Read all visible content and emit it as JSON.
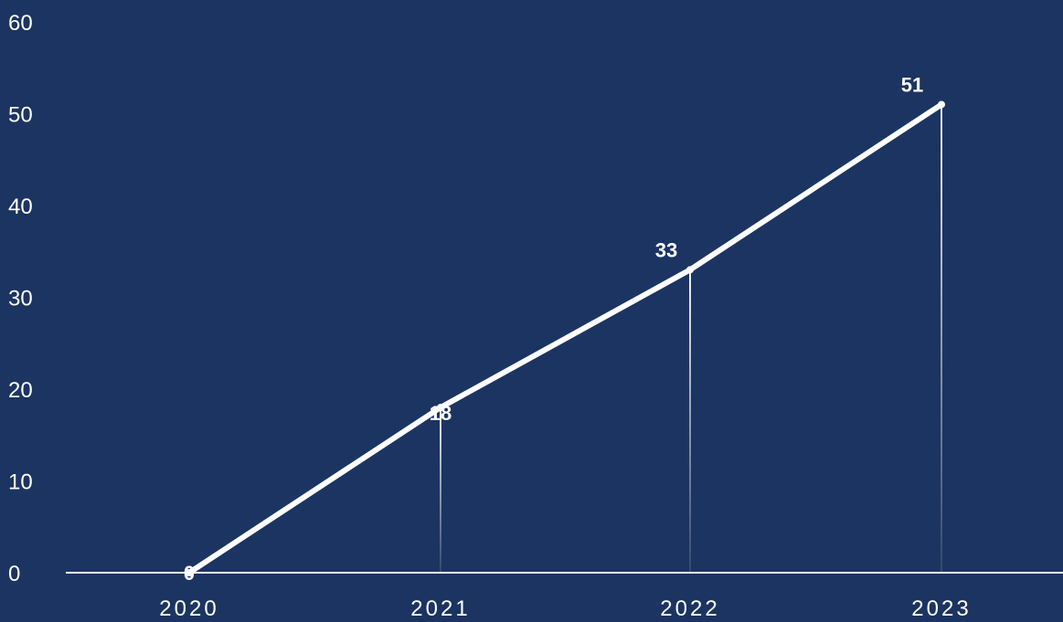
{
  "chart_data": {
    "type": "line",
    "categories": [
      "2020",
      "2021",
      "2022",
      "2023"
    ],
    "series": [
      {
        "values": [
          0,
          18,
          33,
          51
        ]
      }
    ],
    "data_labels": [
      "0",
      "18",
      "33",
      "51"
    ],
    "y_ticks": [
      "0",
      "10",
      "20",
      "30",
      "40",
      "50",
      "60"
    ],
    "ylim": [
      0,
      60
    ],
    "title": "",
    "xlabel": "",
    "ylabel": "",
    "grid": false,
    "drop_lines": true,
    "colors": {
      "background": "#1c3461",
      "line": "#ffffff",
      "axis": "#ffffff",
      "text": "#ffffff"
    }
  }
}
